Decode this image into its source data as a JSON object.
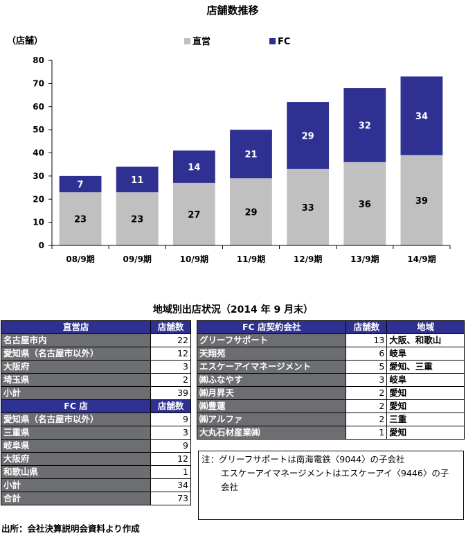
{
  "chart_data": {
    "type": "bar",
    "stacked": true,
    "title": "店舗数推移",
    "ylabel": "（店舗）",
    "categories": [
      "08/9期",
      "09/9期",
      "10/9期",
      "11/9期",
      "12/9期",
      "13/9期",
      "14/9期"
    ],
    "series": [
      {
        "name": "直営",
        "color": "#c0c0c0",
        "values": [
          23,
          23,
          27,
          29,
          33,
          36,
          39
        ]
      },
      {
        "name": "FC",
        "color": "#2e3192",
        "values": [
          7,
          11,
          14,
          21,
          29,
          32,
          34
        ]
      }
    ],
    "ylim": [
      0,
      80
    ],
    "yticks": [
      0,
      10,
      20,
      30,
      40,
      50,
      60,
      70,
      80
    ],
    "legend_position": "top",
    "grid": false
  },
  "region_section": {
    "title": "地域別出店状況（2014 年 9 月末）",
    "direct_table": {
      "header": "直営店",
      "count_header": "店舗数",
      "rows": [
        {
          "name": "名古屋市内",
          "count": "22"
        },
        {
          "name": "愛知県（名古屋市以外）",
          "count": "12"
        },
        {
          "name": "大阪府",
          "count": "3"
        },
        {
          "name": "埼玉県",
          "count": "2"
        }
      ],
      "subtotal_label": "小計",
      "subtotal": "39"
    },
    "fc_table": {
      "header": "FC 店",
      "count_header": "店舗数",
      "rows": [
        {
          "name": "愛知県（名古屋市以外）",
          "count": "9"
        },
        {
          "name": "三重県",
          "count": "3"
        },
        {
          "name": "岐阜県",
          "count": "9"
        },
        {
          "name": "大阪府",
          "count": "12"
        },
        {
          "name": "和歌山県",
          "count": "1"
        }
      ],
      "subtotal_label": "小計",
      "subtotal": "34",
      "total_label": "合計",
      "total": "73"
    },
    "contract_table": {
      "header": "FC 店契約会社",
      "count_header": "店舗数",
      "region_header": "地域",
      "rows": [
        {
          "name": "グリーフサポート",
          "count": "13",
          "region": "大阪、和歌山"
        },
        {
          "name": "天翔苑",
          "count": "6",
          "region": "岐阜"
        },
        {
          "name": "エスケーアイマネージメント",
          "count": "5",
          "region": "愛知、三重"
        },
        {
          "name": "㈱ふなやす",
          "count": "3",
          "region": "岐阜"
        },
        {
          "name": "㈱月昇天",
          "count": "2",
          "region": "愛知"
        },
        {
          "name": "㈱豊蓮",
          "count": "2",
          "region": "愛知"
        },
        {
          "name": "㈱アルファ",
          "count": "2",
          "region": "三重"
        },
        {
          "name": "大丸石材産業㈱",
          "count": "1",
          "region": "愛知"
        }
      ]
    },
    "note": {
      "line1": "注：グリーフサポートは南海電鉄〈9044〉の子会社",
      "line2": "エスケーアイマネージメントはエスケーアイ〈9446〉の子",
      "line3": "会社"
    },
    "source": "出所：会社決算説明会資料より作成"
  }
}
